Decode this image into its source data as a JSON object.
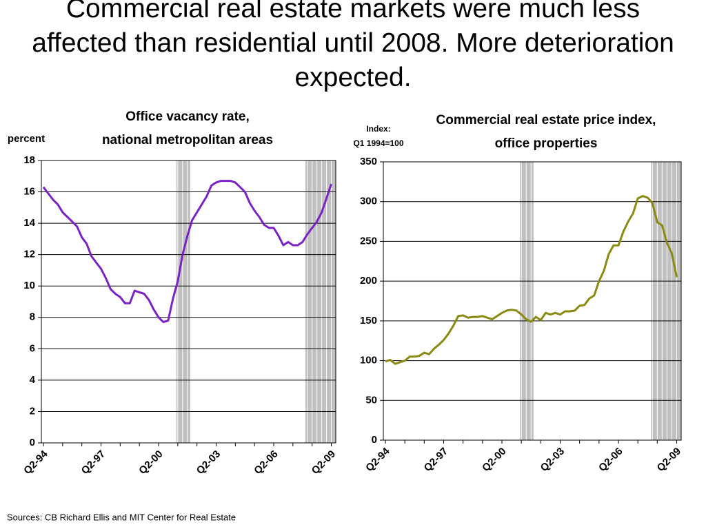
{
  "title": "Commercial real estate markets were much less affected than residential until 2008.  More deterioration expected.",
  "source": "Sources: CB Richard Ellis and MIT Center for Real Estate",
  "chart_data": [
    {
      "type": "line",
      "title": [
        "Office vacancy rate,",
        "national metropolitan areas"
      ],
      "y_label": [
        "percent"
      ],
      "categories": [
        "Q2-94",
        null,
        null,
        null,
        null,
        null,
        null,
        null,
        null,
        null,
        null,
        null,
        "Q2-97",
        null,
        null,
        null,
        null,
        null,
        null,
        null,
        null,
        null,
        null,
        null,
        "Q2-00",
        null,
        null,
        null,
        null,
        null,
        null,
        null,
        null,
        null,
        null,
        null,
        "Q2-03",
        null,
        null,
        null,
        null,
        null,
        null,
        null,
        null,
        null,
        null,
        null,
        "Q2-06",
        null,
        null,
        null,
        null,
        null,
        null,
        null,
        null,
        null,
        null,
        null,
        "Q2-09"
      ],
      "series": [
        {
          "color": "#7a22c4",
          "values": [
            16.3,
            15.9,
            15.5,
            15.2,
            14.7,
            14.4,
            14.1,
            13.8,
            13.1,
            12.7,
            11.9,
            11.5,
            11.1,
            10.5,
            9.8,
            9.5,
            9.3,
            8.9,
            8.9,
            9.7,
            9.6,
            9.5,
            9.1,
            8.5,
            8.0,
            7.7,
            7.8,
            9.2,
            10.3,
            12.0,
            13.2,
            14.2,
            14.7,
            15.2,
            15.7,
            16.4,
            16.6,
            16.7,
            16.7,
            16.7,
            16.6,
            16.3,
            16.0,
            15.3,
            14.8,
            14.4,
            13.9,
            13.7,
            13.7,
            13.2,
            12.6,
            12.8,
            12.6,
            12.6,
            12.8,
            13.3,
            13.7,
            14.1,
            14.7,
            15.6,
            16.5
          ]
        }
      ],
      "shaded_periods": [
        [
          27.7,
          30.6
        ],
        [
          54.6,
          61
        ]
      ],
      "ylim": [
        0,
        18
      ],
      "yticks": [
        0,
        2,
        4,
        6,
        8,
        10,
        12,
        14,
        16,
        18
      ],
      "grid": true
    },
    {
      "type": "line",
      "title": [
        "Commercial real estate price index,",
        "office properties"
      ],
      "y_label": [
        "Index:",
        "Q1 1994=100"
      ],
      "categories": [
        "Q2-94",
        null,
        null,
        null,
        null,
        null,
        null,
        null,
        null,
        null,
        null,
        null,
        "Q2-97",
        null,
        null,
        null,
        null,
        null,
        null,
        null,
        null,
        null,
        null,
        null,
        "Q2-00",
        null,
        null,
        null,
        null,
        null,
        null,
        null,
        null,
        null,
        null,
        null,
        "Q2-03",
        null,
        null,
        null,
        null,
        null,
        null,
        null,
        null,
        null,
        null,
        null,
        "Q2-06",
        null,
        null,
        null,
        null,
        null,
        null,
        null,
        null,
        null,
        null,
        null,
        "Q2-09"
      ],
      "series": [
        {
          "color": "#8a8a12",
          "values": [
            99,
            101,
            96,
            98,
            100,
            105,
            105,
            106,
            110,
            108,
            115,
            120,
            126,
            134,
            144,
            156,
            157,
            154,
            155,
            155,
            156,
            154,
            152,
            156,
            160,
            163,
            164,
            163,
            158,
            152,
            149,
            155,
            151,
            160,
            158,
            160,
            158,
            162,
            162,
            163,
            169,
            170,
            178,
            182,
            200,
            213,
            234,
            245,
            245,
            262,
            275,
            285,
            304,
            307,
            305,
            298,
            274,
            270,
            248,
            235,
            205
          ]
        }
      ],
      "shaded_periods": [
        [
          27.7,
          30.5
        ],
        [
          54.7,
          61
        ]
      ],
      "ylim": [
        0,
        350
      ],
      "yticks": [
        0,
        50,
        100,
        150,
        200,
        250,
        300,
        350
      ],
      "grid": true
    }
  ]
}
